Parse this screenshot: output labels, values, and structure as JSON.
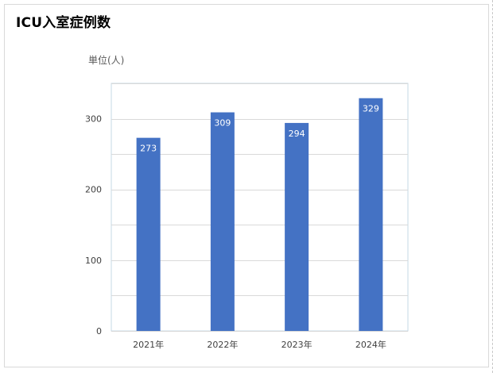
{
  "chart_data": {
    "type": "bar",
    "title": "ICU入室症例数",
    "unit_label": "単位(人)",
    "categories": [
      "2021年",
      "2022年",
      "2023年",
      "2024年"
    ],
    "values": [
      273,
      309,
      294,
      329
    ],
    "data_labels": [
      "273",
      "309",
      "294",
      "329"
    ],
    "ylim": [
      0,
      350
    ],
    "yticks": [
      0,
      100,
      200,
      300
    ],
    "ytick_labels": [
      "0",
      "100",
      "200",
      "300"
    ],
    "grid": true,
    "bar_color": "#4472c4"
  }
}
